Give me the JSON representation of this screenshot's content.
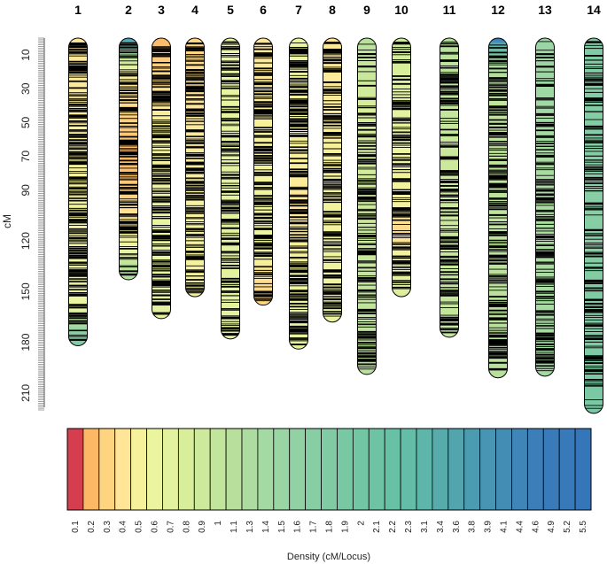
{
  "chart_data": {
    "type": "heatmap",
    "title": "",
    "ylabel": "cM",
    "ylim": [
      0,
      220
    ],
    "y_ticks": [
      10,
      30,
      50,
      70,
      90,
      120,
      150,
      180,
      210
    ],
    "chromosomes": [
      {
        "name": "1",
        "length_cM": 182,
        "seed": 11,
        "markers": 230,
        "density": [
          [
            0,
            0.4
          ],
          [
            160,
            0.6
          ],
          [
            176,
            1.8
          ],
          [
            182,
            1.8
          ]
        ]
      },
      {
        "name": "2",
        "length_cM": 143,
        "seed": 22,
        "markers": 150,
        "density": [
          [
            0,
            3.9
          ],
          [
            10,
            1.2
          ],
          [
            20,
            0.5
          ],
          [
            45,
            0.3
          ],
          [
            70,
            0.2
          ],
          [
            95,
            0.3
          ],
          [
            125,
            0.6
          ],
          [
            135,
            1.1
          ],
          [
            143,
            1.2
          ]
        ]
      },
      {
        "name": "3",
        "length_cM": 166,
        "seed": 33,
        "markers": 210,
        "density": [
          [
            0,
            0.2
          ],
          [
            20,
            0.3
          ],
          [
            50,
            0.5
          ],
          [
            100,
            0.6
          ],
          [
            166,
            0.7
          ]
        ]
      },
      {
        "name": "4",
        "length_cM": 153,
        "seed": 44,
        "markers": 180,
        "density": [
          [
            0,
            0.3
          ],
          [
            40,
            0.4
          ],
          [
            100,
            0.5
          ],
          [
            153,
            0.5
          ]
        ]
      },
      {
        "name": "5",
        "length_cM": 178,
        "seed": 55,
        "markers": 170,
        "density": [
          [
            0,
            0.6
          ],
          [
            80,
            0.7
          ],
          [
            178,
            0.7
          ]
        ]
      },
      {
        "name": "6",
        "length_cM": 158,
        "seed": 66,
        "markers": 180,
        "density": [
          [
            0,
            0.4
          ],
          [
            60,
            0.5
          ],
          [
            120,
            0.6
          ],
          [
            150,
            0.3
          ],
          [
            158,
            0.3
          ]
        ]
      },
      {
        "name": "7",
        "length_cM": 184,
        "seed": 77,
        "markers": 240,
        "density": [
          [
            0,
            0.6
          ],
          [
            60,
            0.5
          ],
          [
            100,
            0.4
          ],
          [
            184,
            0.7
          ]
        ]
      },
      {
        "name": "8",
        "length_cM": 168,
        "seed": 88,
        "markers": 190,
        "density": [
          [
            0,
            0.4
          ],
          [
            80,
            0.5
          ],
          [
            168,
            0.6
          ]
        ]
      },
      {
        "name": "9",
        "length_cM": 199,
        "seed": 99,
        "markers": 190,
        "density": [
          [
            0,
            1.1
          ],
          [
            40,
            0.8
          ],
          [
            100,
            0.9
          ],
          [
            199,
            1.1
          ]
        ]
      },
      {
        "name": "10",
        "length_cM": 153,
        "seed": 110,
        "markers": 150,
        "density": [
          [
            0,
            0.9
          ],
          [
            60,
            0.6
          ],
          [
            100,
            0.5
          ],
          [
            115,
            0.3
          ],
          [
            125,
            0.5
          ],
          [
            153,
            0.8
          ]
        ]
      },
      {
        "name": "11",
        "length_cM": 177,
        "seed": 121,
        "markers": 170,
        "density": [
          [
            0,
            1.1
          ],
          [
            80,
            0.9
          ],
          [
            177,
            1.0
          ]
        ]
      },
      {
        "name": "12",
        "length_cM": 201,
        "seed": 132,
        "markers": 220,
        "density": [
          [
            0,
            5.2
          ],
          [
            4,
            3.1
          ],
          [
            12,
            1.4
          ],
          [
            30,
            1.0
          ],
          [
            201,
            1.1
          ]
        ]
      },
      {
        "name": "13",
        "length_cM": 200,
        "seed": 143,
        "markers": 190,
        "density": [
          [
            0,
            1.5
          ],
          [
            100,
            1.3
          ],
          [
            200,
            1.4
          ]
        ]
      },
      {
        "name": "14",
        "length_cM": 222,
        "seed": 154,
        "markers": 170,
        "density": [
          [
            0,
            1.8
          ],
          [
            100,
            1.7
          ],
          [
            222,
            1.9
          ]
        ]
      }
    ],
    "legend": {
      "title": "Density (cM/Locus)",
      "labels": [
        "0.1",
        "0.2",
        "0.3",
        "0.4",
        "0.5",
        "0.6",
        "0.7",
        "0.8",
        "0.9",
        "1",
        "1.1",
        "1.3",
        "1.4",
        "1.5",
        "1.6",
        "1.7",
        "1.8",
        "1.9",
        "2",
        "2.1",
        "2.2",
        "2.3",
        "3.1",
        "3.4",
        "3.6",
        "3.8",
        "3.9",
        "4.1",
        "4.4",
        "4.6",
        "4.9",
        "5.2",
        "5.5"
      ],
      "colors": [
        "#d53e4f",
        "#fdb866",
        "#fed481",
        "#fee598",
        "#f6f29b",
        "#ebf5a0",
        "#e3f29f",
        "#d8ee9b",
        "#cde99b",
        "#c2e59c",
        "#b8e09c",
        "#acdca0",
        "#a3d9a3",
        "#9ad5a4",
        "#91d1a4",
        "#88cea5",
        "#80cba4",
        "#79c8a4",
        "#72c6a4",
        "#6ec3a5",
        "#69c1a5",
        "#64bda6",
        "#5eb5a9",
        "#57acab",
        "#52a4ad",
        "#4c9cb1",
        "#4794b3",
        "#438db5",
        "#3f85b7",
        "#3c7eb8",
        "#397bb9",
        "#3879b9",
        "#3576ba"
      ]
    }
  }
}
